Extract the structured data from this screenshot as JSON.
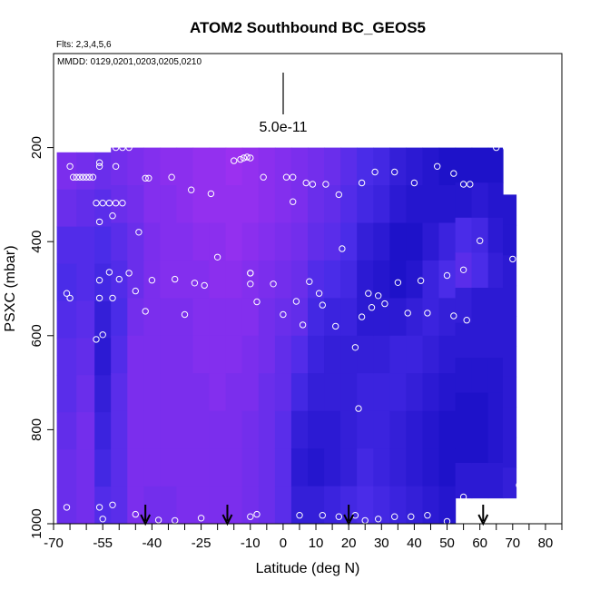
{
  "chart_data": {
    "type": "heatmap",
    "title": "ATOM2 Southbound BC_GEOS5",
    "subtitle_flights": "Flts: 2,3,4,5,6",
    "subtitle_dates": "MMDD: 0129,0201,0203,0205,0210",
    "xlabel": "Latitude (deg N)",
    "ylabel": "PSXC (mbar)",
    "xlim": [
      -70,
      85
    ],
    "ylim": [
      1000,
      0
    ],
    "x_ticks": [
      -70,
      -55,
      -40,
      -25,
      -10,
      0,
      10,
      20,
      30,
      40,
      50,
      60,
      70,
      80
    ],
    "x_tick_labels": [
      "-70",
      "-55",
      "-40",
      "-25",
      "-10",
      "0",
      "10",
      "20",
      "30",
      "40",
      "50",
      "60",
      "70",
      "80"
    ],
    "y_ticks": [
      200,
      400,
      600,
      800,
      1000
    ],
    "y_tick_labels": [
      "200",
      "400",
      "600",
      "800",
      "1000"
    ],
    "legend_scale_label": "5.0e-11",
    "colors": {
      "low": "#0000b4",
      "mid": "#4a2ce8",
      "high": "#9b30f0",
      "peak": "#4a8cff",
      "obs_marker": "#ffffff",
      "frame": "#000000"
    },
    "field_columns": [
      {
        "lat": -66,
        "pmin": 210,
        "values": [
          0.8,
          0.7,
          0.55,
          0.5,
          0.55,
          0.6,
          0.6,
          0.65,
          0.7,
          0.7
        ]
      },
      {
        "lat": -60,
        "pmin": 210,
        "values": [
          0.75,
          0.65,
          0.55,
          0.55,
          0.6,
          0.65,
          0.7,
          0.75,
          0.75,
          0.75
        ]
      },
      {
        "lat": -55,
        "pmin": 210,
        "values": [
          0.7,
          0.6,
          0.5,
          0.45,
          0.35,
          0.3,
          0.35,
          0.4,
          0.45,
          0.55
        ]
      },
      {
        "lat": -50,
        "pmin": 200,
        "values": [
          0.75,
          0.7,
          0.6,
          0.55,
          0.5,
          0.55,
          0.6,
          0.6,
          0.6,
          0.6
        ]
      },
      {
        "lat": -45,
        "pmin": 200,
        "values": [
          0.8,
          0.75,
          0.7,
          0.7,
          0.75,
          0.8,
          0.8,
          0.8,
          0.8,
          0.8
        ]
      },
      {
        "lat": -40,
        "pmin": 200,
        "values": [
          0.85,
          0.85,
          0.8,
          0.8,
          0.8,
          0.8,
          0.8,
          0.8,
          0.8,
          0.75
        ]
      },
      {
        "lat": -35,
        "pmin": 200,
        "values": [
          0.9,
          0.85,
          0.85,
          0.85,
          0.8,
          0.8,
          0.8,
          0.8,
          0.8,
          0.75
        ]
      },
      {
        "lat": -30,
        "pmin": 200,
        "values": [
          0.9,
          0.9,
          0.85,
          0.85,
          0.8,
          0.8,
          0.8,
          0.8,
          0.8,
          0.8
        ]
      },
      {
        "lat": -25,
        "pmin": 200,
        "values": [
          0.95,
          0.95,
          0.9,
          0.85,
          0.85,
          0.85,
          0.8,
          0.8,
          0.8,
          0.8
        ]
      },
      {
        "lat": -20,
        "pmin": 200,
        "values": [
          0.95,
          0.95,
          0.9,
          0.9,
          0.85,
          0.85,
          0.85,
          0.8,
          0.8,
          0.8
        ]
      },
      {
        "lat": -15,
        "pmin": 200,
        "values": [
          1.0,
          0.95,
          0.95,
          0.9,
          0.85,
          0.85,
          0.8,
          0.8,
          0.8,
          0.8
        ]
      },
      {
        "lat": -10,
        "pmin": 200,
        "values": [
          0.95,
          0.95,
          0.9,
          0.85,
          0.85,
          0.8,
          0.8,
          0.75,
          0.75,
          0.75
        ]
      },
      {
        "lat": -5,
        "pmin": 200,
        "values": [
          0.9,
          0.9,
          0.85,
          0.8,
          0.75,
          0.75,
          0.7,
          0.7,
          0.7,
          0.7
        ]
      },
      {
        "lat": 0,
        "pmin": 200,
        "values": [
          0.85,
          0.85,
          0.8,
          0.75,
          0.7,
          0.65,
          0.65,
          0.6,
          0.6,
          0.6
        ]
      },
      {
        "lat": 5,
        "pmin": 200,
        "values": [
          0.8,
          0.8,
          0.75,
          0.7,
          0.65,
          0.55,
          0.45,
          0.35,
          0.3,
          0.35
        ]
      },
      {
        "lat": 10,
        "pmin": 200,
        "values": [
          0.75,
          0.7,
          0.65,
          0.55,
          0.45,
          0.4,
          0.35,
          0.3,
          0.25,
          0.35
        ]
      },
      {
        "lat": 15,
        "pmin": 200,
        "values": [
          0.7,
          0.65,
          0.6,
          0.5,
          0.4,
          0.35,
          0.35,
          0.3,
          0.3,
          0.4
        ]
      },
      {
        "lat": 20,
        "pmin": 200,
        "values": [
          0.6,
          0.55,
          0.5,
          0.45,
          0.4,
          0.35,
          0.35,
          0.35,
          0.35,
          0.45
        ]
      },
      {
        "lat": 25,
        "pmin": 200,
        "values": [
          0.5,
          0.45,
          0.35,
          0.3,
          0.3,
          0.35,
          0.4,
          0.4,
          0.45,
          0.5
        ]
      },
      {
        "lat": 30,
        "pmin": 200,
        "values": [
          0.45,
          0.4,
          0.3,
          0.25,
          0.3,
          0.35,
          0.4,
          0.4,
          0.4,
          0.45
        ]
      },
      {
        "lat": 35,
        "pmin": 200,
        "values": [
          0.35,
          0.3,
          0.2,
          0.2,
          0.3,
          0.4,
          0.4,
          0.35,
          0.35,
          0.4
        ]
      },
      {
        "lat": 40,
        "pmin": 200,
        "values": [
          0.3,
          0.25,
          0.2,
          0.25,
          0.35,
          0.4,
          0.35,
          0.3,
          0.3,
          0.35
        ]
      },
      {
        "lat": 45,
        "pmin": 200,
        "values": [
          0.25,
          0.25,
          0.3,
          0.4,
          0.4,
          0.35,
          0.3,
          0.25,
          0.25,
          0.3
        ]
      },
      {
        "lat": 50,
        "pmin": 200,
        "values": [
          0.2,
          0.25,
          0.4,
          0.5,
          0.35,
          0.3,
          0.25,
          0.2,
          0.2,
          0.25
        ]
      },
      {
        "lat": 55,
        "pmin": 200,
        "values": [
          0.2,
          0.25,
          0.5,
          0.6,
          0.35,
          0.3,
          0.25,
          0.2,
          0.2,
          0.3
        ]
      },
      {
        "lat": 60,
        "pmin": 200,
        "values": [
          0.2,
          0.3,
          0.45,
          0.5,
          0.3,
          0.3,
          0.25,
          0.2,
          0.2,
          0.3
        ]
      },
      {
        "lat": 65,
        "pmin": 200,
        "values": [
          0.2,
          0.25,
          0.3,
          0.35,
          0.3,
          0.3,
          0.25,
          0.25,
          0.25,
          0.3
        ]
      },
      {
        "lat": 69,
        "pmin": 300,
        "values": [
          0.25,
          0.25,
          0.3,
          0.3,
          0.3,
          0.3,
          0.3,
          0.3,
          0.3,
          0.35
        ]
      }
    ],
    "field_pmax": [
      1000,
      1000,
      1000,
      1000,
      1000,
      1000,
      1000,
      1000,
      1000,
      1000,
      1000,
      1000,
      1000,
      1000,
      1000,
      1000,
      1000,
      1000,
      1000,
      1000,
      1000,
      1000,
      1000,
      1000,
      945,
      945,
      945,
      945
    ],
    "observations": [
      {
        "lat": -54,
        "p": 200
      },
      {
        "lat": -51,
        "p": 200
      },
      {
        "lat": -49,
        "p": 200
      },
      {
        "lat": -47,
        "p": 200
      },
      {
        "lat": -65,
        "p": 240
      },
      {
        "lat": -56,
        "p": 232
      },
      {
        "lat": -56,
        "p": 240
      },
      {
        "lat": -51,
        "p": 240
      },
      {
        "lat": -64,
        "p": 263
      },
      {
        "lat": -63,
        "p": 263
      },
      {
        "lat": -62,
        "p": 263
      },
      {
        "lat": -61,
        "p": 263
      },
      {
        "lat": -60,
        "p": 263
      },
      {
        "lat": -59,
        "p": 263
      },
      {
        "lat": -58,
        "p": 263
      },
      {
        "lat": -42,
        "p": 265
      },
      {
        "lat": -41,
        "p": 265
      },
      {
        "lat": -34,
        "p": 263
      },
      {
        "lat": -28,
        "p": 290
      },
      {
        "lat": -22,
        "p": 298
      },
      {
        "lat": -15,
        "p": 228
      },
      {
        "lat": -13,
        "p": 225
      },
      {
        "lat": -12,
        "p": 222
      },
      {
        "lat": -11,
        "p": 220
      },
      {
        "lat": -10,
        "p": 222
      },
      {
        "lat": -6,
        "p": 263
      },
      {
        "lat": 1,
        "p": 263
      },
      {
        "lat": 3,
        "p": 263
      },
      {
        "lat": 3,
        "p": 315
      },
      {
        "lat": 7,
        "p": 275
      },
      {
        "lat": 9,
        "p": 278
      },
      {
        "lat": 13,
        "p": 278
      },
      {
        "lat": 17,
        "p": 300
      },
      {
        "lat": 24,
        "p": 275
      },
      {
        "lat": 28,
        "p": 252
      },
      {
        "lat": 34,
        "p": 252
      },
      {
        "lat": 40,
        "p": 275
      },
      {
        "lat": 47,
        "p": 240
      },
      {
        "lat": 52,
        "p": 255
      },
      {
        "lat": 55,
        "p": 278
      },
      {
        "lat": 57,
        "p": 278
      },
      {
        "lat": 65,
        "p": 200
      },
      {
        "lat": 68,
        "p": 200
      },
      {
        "lat": -57,
        "p": 318
      },
      {
        "lat": -55,
        "p": 318
      },
      {
        "lat": -53,
        "p": 318
      },
      {
        "lat": -51,
        "p": 318
      },
      {
        "lat": -49,
        "p": 318
      },
      {
        "lat": -56,
        "p": 358
      },
      {
        "lat": -52,
        "p": 345
      },
      {
        "lat": -44,
        "p": 380
      },
      {
        "lat": -20,
        "p": 433
      },
      {
        "lat": 18,
        "p": 415
      },
      {
        "lat": 60,
        "p": 398
      },
      {
        "lat": 70,
        "p": 437
      },
      {
        "lat": -66,
        "p": 510
      },
      {
        "lat": -65,
        "p": 520
      },
      {
        "lat": -56,
        "p": 482
      },
      {
        "lat": -53,
        "p": 465
      },
      {
        "lat": -50,
        "p": 480
      },
      {
        "lat": -47,
        "p": 467
      },
      {
        "lat": -45,
        "p": 505
      },
      {
        "lat": -40,
        "p": 482
      },
      {
        "lat": -33,
        "p": 480
      },
      {
        "lat": -27,
        "p": 488
      },
      {
        "lat": -24,
        "p": 493
      },
      {
        "lat": -10,
        "p": 467
      },
      {
        "lat": -10,
        "p": 490
      },
      {
        "lat": -10,
        "p": 467
      },
      {
        "lat": -3,
        "p": 490
      },
      {
        "lat": 8,
        "p": 485
      },
      {
        "lat": -8,
        "p": 528
      },
      {
        "lat": 4,
        "p": 527
      },
      {
        "lat": 11,
        "p": 510
      },
      {
        "lat": 12,
        "p": 535
      },
      {
        "lat": 26,
        "p": 510
      },
      {
        "lat": 29,
        "p": 515
      },
      {
        "lat": 31,
        "p": 532
      },
      {
        "lat": 35,
        "p": 487
      },
      {
        "lat": 42,
        "p": 483
      },
      {
        "lat": 50,
        "p": 472
      },
      {
        "lat": 55,
        "p": 460
      },
      {
        "lat": -56,
        "p": 520
      },
      {
        "lat": -52,
        "p": 520
      },
      {
        "lat": -42,
        "p": 548
      },
      {
        "lat": -30,
        "p": 555
      },
      {
        "lat": 0,
        "p": 555
      },
      {
        "lat": 6,
        "p": 577
      },
      {
        "lat": 16,
        "p": 580
      },
      {
        "lat": 24,
        "p": 560
      },
      {
        "lat": 27,
        "p": 540
      },
      {
        "lat": 38,
        "p": 552
      },
      {
        "lat": 44,
        "p": 552
      },
      {
        "lat": 52,
        "p": 558
      },
      {
        "lat": 56,
        "p": 567
      },
      {
        "lat": -57,
        "p": 608
      },
      {
        "lat": -55,
        "p": 598
      },
      {
        "lat": 22,
        "p": 625
      },
      {
        "lat": 23,
        "p": 755
      },
      {
        "lat": 72,
        "p": 918
      },
      {
        "lat": 55,
        "p": 943
      },
      {
        "lat": -66,
        "p": 965
      },
      {
        "lat": -56,
        "p": 965
      },
      {
        "lat": -52,
        "p": 960
      },
      {
        "lat": -45,
        "p": 980
      },
      {
        "lat": -55,
        "p": 990
      },
      {
        "lat": -38,
        "p": 992
      },
      {
        "lat": -33,
        "p": 993
      },
      {
        "lat": -25,
        "p": 988
      },
      {
        "lat": -10,
        "p": 985
      },
      {
        "lat": -8,
        "p": 980
      },
      {
        "lat": 5,
        "p": 982
      },
      {
        "lat": 12,
        "p": 982
      },
      {
        "lat": 17,
        "p": 985
      },
      {
        "lat": 22,
        "p": 982
      },
      {
        "lat": 25,
        "p": 993
      },
      {
        "lat": 29,
        "p": 990
      },
      {
        "lat": 34,
        "p": 985
      },
      {
        "lat": 39,
        "p": 985
      },
      {
        "lat": 44,
        "p": 982
      },
      {
        "lat": 50,
        "p": 995
      }
    ],
    "arrows_lat": [
      -42,
      -17,
      20,
      61
    ],
    "grid": false,
    "legend": "top-center"
  }
}
